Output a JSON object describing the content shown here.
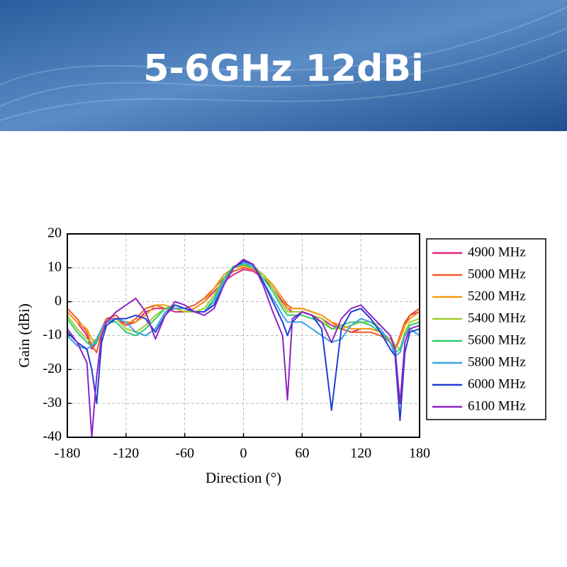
{
  "header": {
    "title": "5-6GHz 12dBi"
  },
  "chart_data": {
    "type": "line",
    "xlabel": "Direction (°)",
    "ylabel": "Gain (dBi)",
    "xlim": [
      -180,
      180
    ],
    "ylim": [
      -40,
      20
    ],
    "xticks": [
      -180,
      -120,
      -60,
      0,
      60,
      120,
      180
    ],
    "yticks": [
      -40,
      -30,
      -20,
      -10,
      0,
      10,
      20
    ],
    "grid": true,
    "legend": "right",
    "x": [
      -180,
      -170,
      -160,
      -155,
      -150,
      -145,
      -140,
      -130,
      -120,
      -110,
      -100,
      -90,
      -80,
      -70,
      -60,
      -50,
      -40,
      -30,
      -20,
      -10,
      0,
      10,
      20,
      30,
      40,
      45,
      50,
      60,
      70,
      80,
      90,
      100,
      110,
      120,
      130,
      140,
      150,
      155,
      160,
      165,
      170,
      180
    ],
    "series": [
      {
        "name": "4900 MHz",
        "color": "#e0257a",
        "values": [
          -3,
          -6,
          -10,
          -14,
          -12,
          -8,
          -5,
          -5,
          -7,
          -6,
          -3,
          -2,
          -2,
          -3,
          -3,
          -2,
          0,
          3,
          6,
          8,
          9.5,
          9,
          7,
          4,
          0,
          -2,
          -3,
          -3,
          -4,
          -5,
          -7,
          -8,
          -9,
          -8,
          -8,
          -9,
          -12,
          -14,
          -11,
          -7,
          -4,
          -3
        ]
      },
      {
        "name": "5000 MHz",
        "color": "#f05a28",
        "values": [
          -2,
          -5,
          -9,
          -13,
          -15,
          -9,
          -5,
          -4,
          -7,
          -5,
          -2,
          -1,
          -2,
          -2,
          -2,
          -1,
          1,
          4,
          7,
          9,
          10,
          9.5,
          8,
          5,
          1,
          -1,
          -2,
          -2,
          -3,
          -4,
          -6,
          -8,
          -9,
          -9,
          -9,
          -10,
          -12,
          -14,
          -10,
          -6,
          -4,
          -2
        ]
      },
      {
        "name": "5200 MHz",
        "color": "#f39c12",
        "values": [
          -3,
          -6,
          -8,
          -11,
          -12,
          -9,
          -6,
          -5,
          -6,
          -6,
          -4,
          -1,
          -1,
          -2,
          -3,
          -2,
          0,
          4,
          8,
          10,
          10.5,
          10,
          8,
          5,
          1,
          -2,
          -2,
          -2,
          -3,
          -4,
          -6,
          -7,
          -8,
          -8,
          -8,
          -9,
          -11,
          -13,
          -11,
          -7,
          -5,
          -3
        ]
      },
      {
        "name": "5400 MHz",
        "color": "#a3cc2a",
        "values": [
          -4,
          -8,
          -11,
          -12,
          -11,
          -8,
          -6,
          -5,
          -8,
          -9,
          -7,
          -4,
          -2,
          -2,
          -3,
          -3,
          -2,
          2,
          7,
          10,
          11,
          10.5,
          8,
          4,
          -1,
          -3,
          -3,
          -3,
          -4,
          -5,
          -8,
          -8,
          -7,
          -6,
          -6,
          -7,
          -10,
          -13,
          -14,
          -9,
          -6,
          -5
        ]
      },
      {
        "name": "5600 MHz",
        "color": "#2ecc71",
        "values": [
          -5,
          -9,
          -12,
          -13,
          -12,
          -8,
          -6,
          -6,
          -9,
          -10,
          -8,
          -5,
          -2,
          -1,
          -2,
          -3,
          -3,
          1,
          7,
          10.5,
          11,
          10,
          7,
          3,
          -2,
          -4,
          -4,
          -4,
          -5,
          -6,
          -8,
          -7,
          -6,
          -6,
          -7,
          -9,
          -12,
          -15,
          -14,
          -10,
          -7,
          -6
        ]
      },
      {
        "name": "5800 MHz",
        "color": "#3aa3e3",
        "values": [
          -10,
          -13,
          -14,
          -13,
          -11,
          -8,
          -6,
          -5,
          -6,
          -9,
          -10,
          -8,
          -3,
          -2,
          -2,
          -3,
          -3,
          0,
          6,
          10,
          11.5,
          10.5,
          6,
          1,
          -4,
          -6,
          -6,
          -6,
          -8,
          -10,
          -12,
          -11,
          -7,
          -5,
          -6,
          -8,
          -12,
          -16,
          -15,
          -10,
          -8,
          -10
        ]
      },
      {
        "name": "6000 MHz",
        "color": "#1f3fd6",
        "values": [
          -9,
          -12,
          -14,
          -20,
          -30,
          -12,
          -7,
          -5,
          -5,
          -4,
          -5,
          -9,
          -4,
          -1,
          -2,
          -3,
          -3,
          -1,
          5,
          10,
          12,
          11,
          6,
          0,
          -6,
          -10,
          -6,
          -3,
          -4,
          -8,
          -32,
          -8,
          -3,
          -2,
          -5,
          -9,
          -14,
          -16,
          -35,
          -15,
          -9,
          -8
        ]
      },
      {
        "name": "6100 MHz",
        "color": "#8e24c4",
        "values": [
          -8,
          -12,
          -18,
          -40,
          -22,
          -10,
          -6,
          -3,
          -1,
          1,
          -3,
          -11,
          -4,
          0,
          -1,
          -3,
          -4,
          -2,
          5,
          10,
          12.5,
          11,
          5,
          -3,
          -10,
          -29,
          -5,
          -3,
          -4,
          -6,
          -12,
          -5,
          -2,
          -1,
          -4,
          -7,
          -10,
          -14,
          -30,
          -12,
          -8,
          -7
        ]
      }
    ]
  }
}
